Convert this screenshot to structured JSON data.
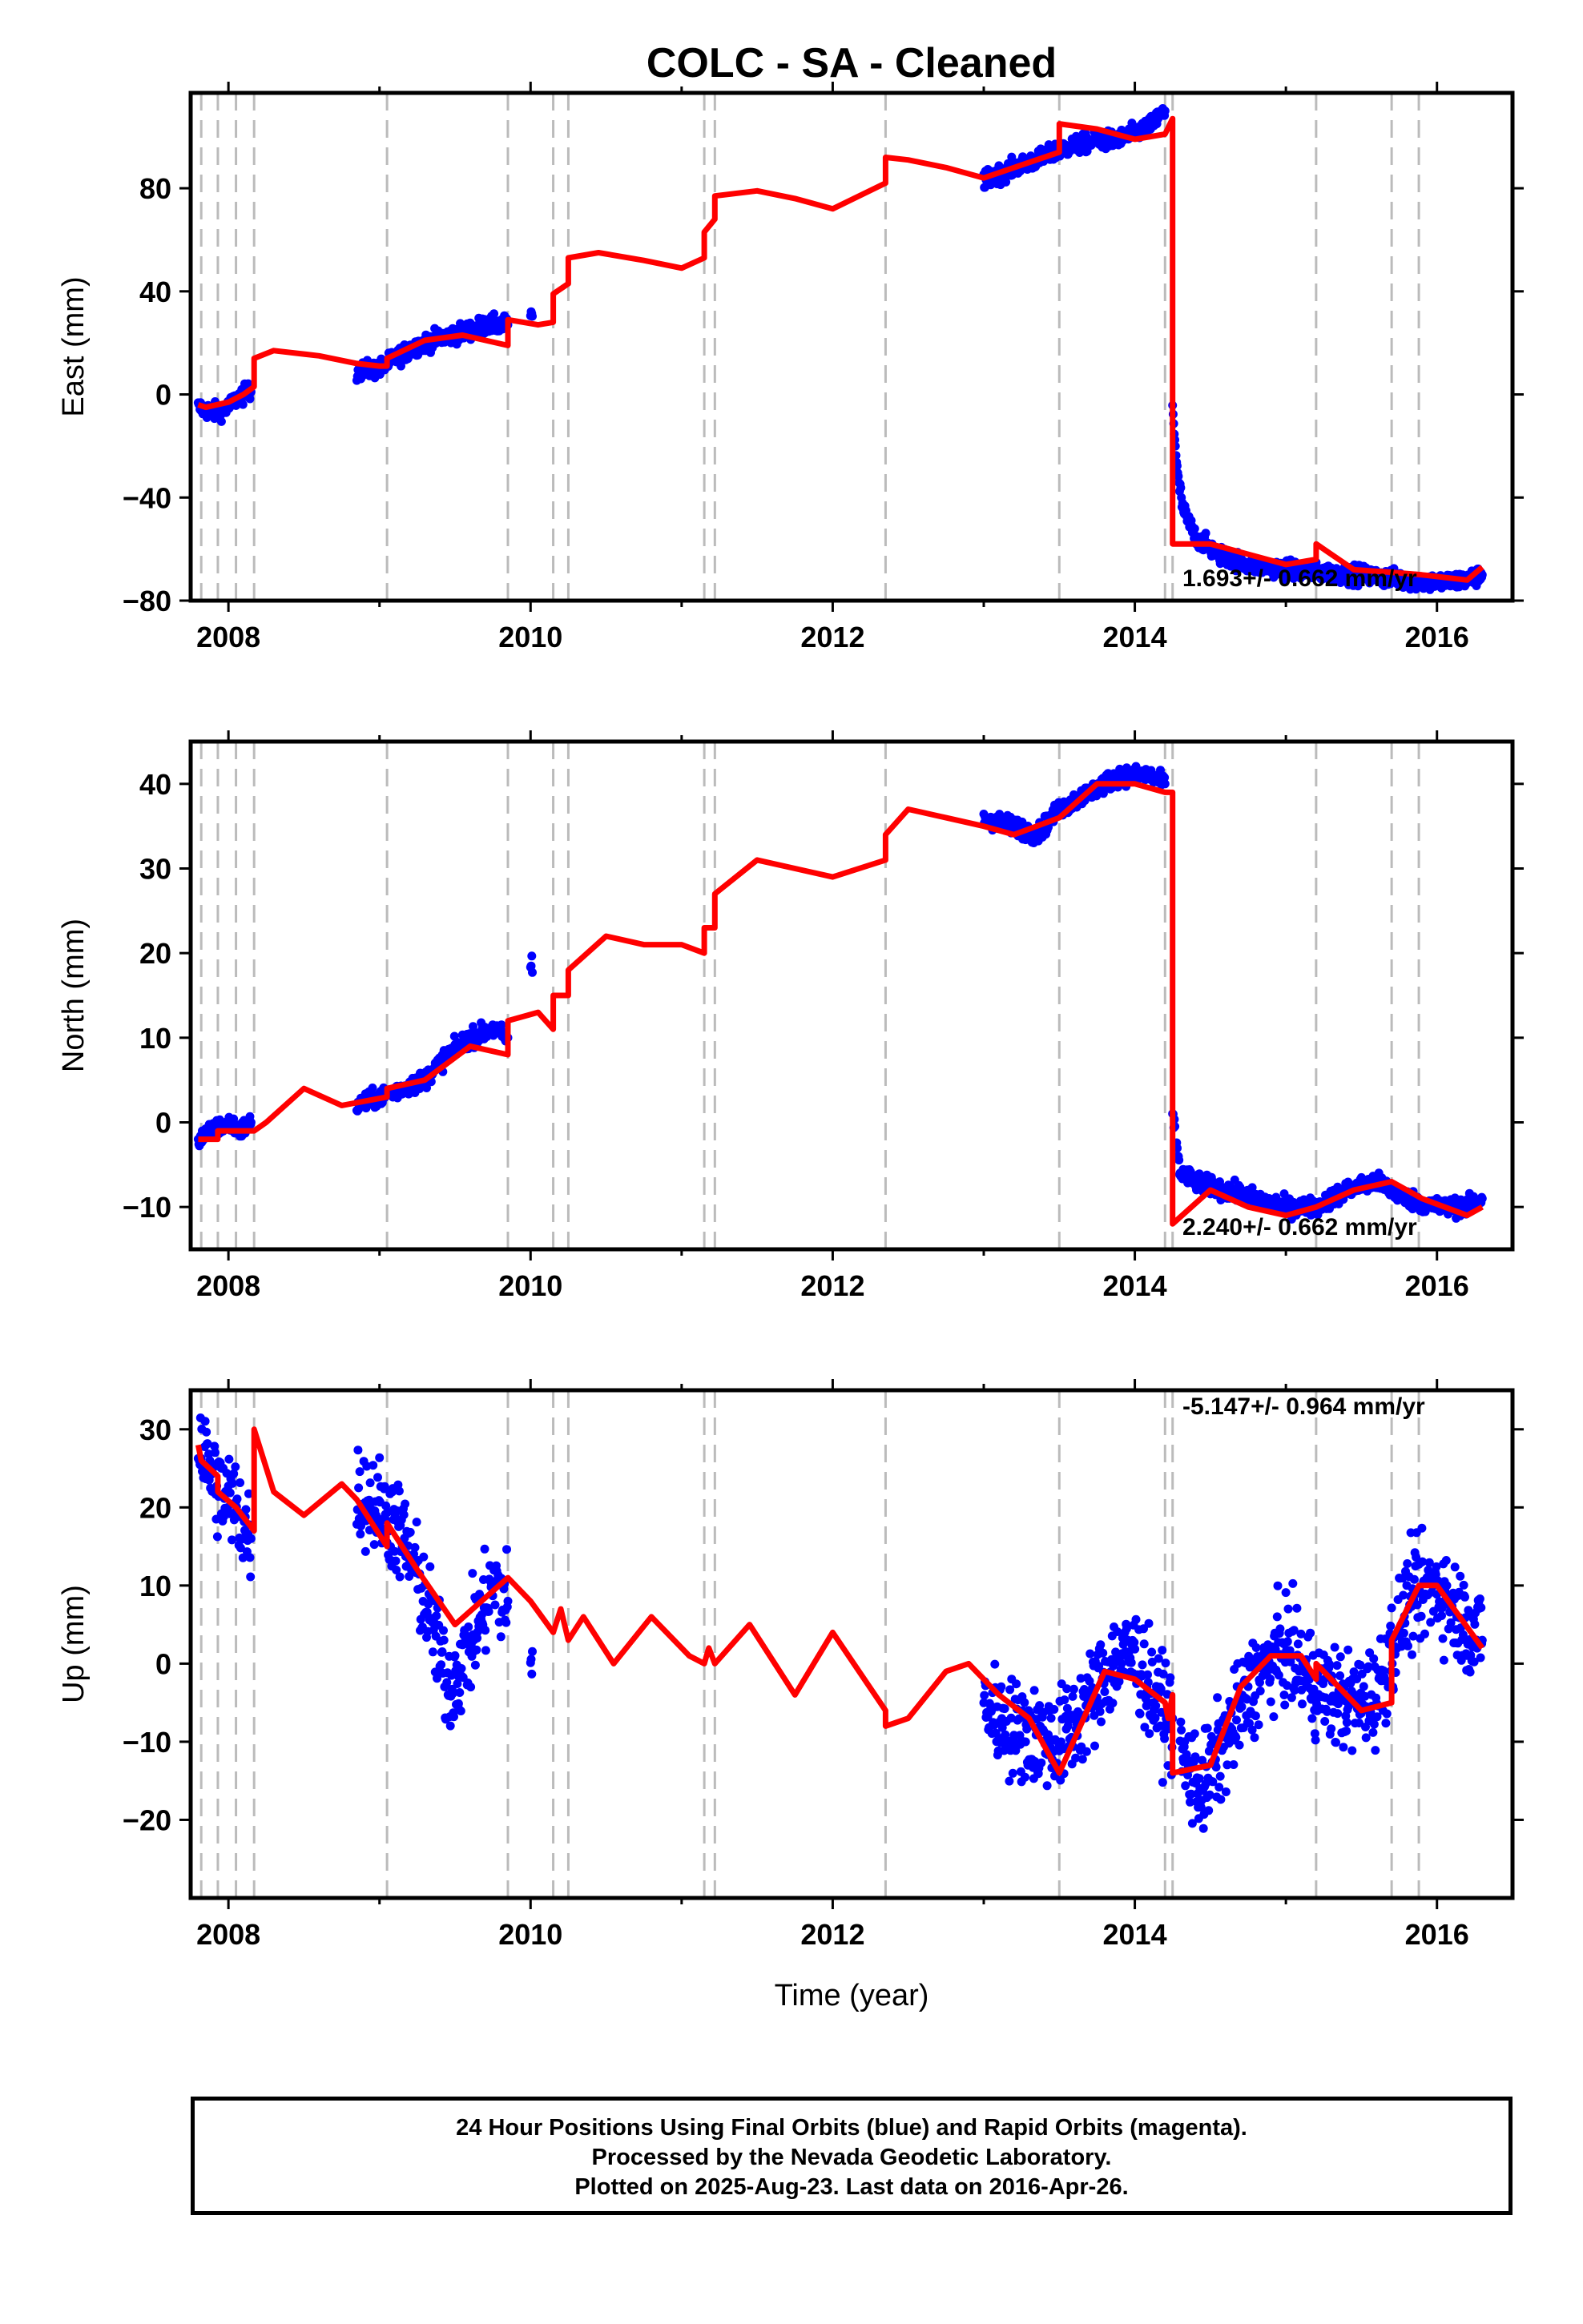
{
  "title": "COLC  - SA - Cleaned",
  "xlabel": "Time (year)",
  "footer": {
    "line1": "24 Hour Positions Using Final Orbits (blue) and Rapid Orbits (magenta).",
    "line2": "Processed by the Nevada Geodetic Laboratory.",
    "line3": "Plotted on 2025-Aug-23. Last data on 2016-Apr-26."
  },
  "colors": {
    "final_orbits": "#0000ff",
    "model": "#ff0000",
    "event_lines": "#bbbbbb",
    "frame": "#000000"
  },
  "chart_data": [
    {
      "type": "scatter",
      "component": "East",
      "ylabel": "East (mm)",
      "rate": "1.693+/- 0.662 mm/yr",
      "xlim": [
        2007.75,
        2016.5
      ],
      "ylim": [
        -80,
        117
      ],
      "xticks": [
        2008,
        2010,
        2012,
        2014,
        2016
      ],
      "yticks": [
        -80,
        -40,
        0,
        40,
        80
      ],
      "grid": false,
      "events": [
        2007.82,
        2007.93,
        2008.05,
        2008.17,
        2009.05,
        2009.85,
        2010.15,
        2010.25,
        2011.15,
        2011.22,
        2012.35,
        2013.5,
        2014.2,
        2014.25,
        2015.2,
        2015.7,
        2015.88
      ],
      "data_segments": [
        {
          "x": [
            2007.8,
            2007.9,
            2008.0,
            2008.05,
            2008.1,
            2008.15
          ],
          "y": [
            -5,
            -7,
            -5,
            -2,
            0,
            1
          ]
        },
        {
          "x": [
            2008.85,
            2009.0,
            2009.1,
            2009.25,
            2009.4,
            2009.55,
            2009.7,
            2009.85
          ],
          "y": [
            9,
            10,
            14,
            19,
            22,
            24,
            27,
            27
          ]
        },
        {
          "x": [
            2010.0
          ],
          "y": [
            31
          ]
        },
        {
          "x": [
            2013.0,
            2013.2,
            2013.4,
            2013.5,
            2013.7,
            2013.9,
            2014.1,
            2014.2
          ],
          "y": [
            83,
            88,
            92,
            95,
            98,
            99,
            104,
            110
          ]
        },
        {
          "x": [
            2014.25,
            2014.28,
            2014.32,
            2014.4,
            2014.55,
            2014.75,
            2015.0,
            2015.2,
            2015.5,
            2015.8,
            2016.0,
            2016.2,
            2016.3
          ],
          "y": [
            -4,
            -30,
            -45,
            -55,
            -62,
            -66,
            -68,
            -69,
            -70,
            -72,
            -73,
            -72,
            -70
          ]
        }
      ],
      "model": {
        "x": [
          2007.8,
          2007.85,
          2008.0,
          2008.1,
          2008.17,
          2008.17,
          2008.3,
          2008.6,
          2008.85,
          2009.0,
          2009.05,
          2009.05,
          2009.3,
          2009.55,
          2009.85,
          2009.85,
          2010.05,
          2010.15,
          2010.15,
          2010.25,
          2010.25,
          2010.45,
          2010.75,
          2011.0,
          2011.15,
          2011.15,
          2011.22,
          2011.22,
          2011.5,
          2011.75,
          2012.0,
          2012.35,
          2012.35,
          2012.5,
          2012.75,
          2013.0,
          2013.2,
          2013.5,
          2013.5,
          2013.75,
          2014.0,
          2014.2,
          2014.25,
          2014.25,
          2014.5,
          2014.75,
          2015.0,
          2015.2,
          2015.2,
          2015.45,
          2015.7,
          2015.9,
          2016.2,
          2016.3
        ],
        "y": [
          -4,
          -5,
          -3,
          0,
          3,
          14,
          17,
          15,
          12,
          11,
          11,
          14,
          21,
          23,
          19,
          29,
          27,
          28,
          39,
          43,
          53,
          55,
          52,
          49,
          53,
          63,
          68,
          77,
          79,
          76,
          72,
          82,
          92,
          91,
          88,
          84,
          88,
          94,
          105,
          103,
          99,
          101,
          107,
          -58,
          -58,
          -62,
          -66,
          -64,
          -58,
          -68,
          -69,
          -70,
          -72,
          -67
        ]
      }
    },
    {
      "type": "scatter",
      "component": "North",
      "ylabel": "North (mm)",
      "rate": "2.240+/- 0.662 mm/yr",
      "xlim": [
        2007.75,
        2016.5
      ],
      "ylim": [
        -15,
        45
      ],
      "xticks": [
        2008,
        2010,
        2012,
        2014,
        2016
      ],
      "yticks": [
        -10,
        0,
        10,
        20,
        30,
        40
      ],
      "grid": false,
      "events": [
        2007.82,
        2007.93,
        2008.05,
        2008.17,
        2009.05,
        2009.85,
        2010.15,
        2010.25,
        2011.15,
        2011.22,
        2012.35,
        2013.5,
        2014.2,
        2014.25,
        2015.2,
        2015.7,
        2015.88
      ],
      "data_segments": [
        {
          "x": [
            2007.8,
            2007.9,
            2008.0,
            2008.08,
            2008.15
          ],
          "y": [
            -2,
            -1,
            0,
            -1,
            0
          ]
        },
        {
          "x": [
            2008.85,
            2009.0,
            2009.15,
            2009.3,
            2009.45,
            2009.6,
            2009.75,
            2009.85
          ],
          "y": [
            2,
            3,
            4,
            5,
            8,
            10,
            11,
            10
          ]
        },
        {
          "x": [
            2010.0
          ],
          "y": [
            18
          ]
        },
        {
          "x": [
            2013.0,
            2013.2,
            2013.35,
            2013.5,
            2013.7,
            2013.9,
            2014.1,
            2014.2
          ],
          "y": [
            36,
            35,
            34,
            37,
            39,
            41,
            41,
            40
          ]
        },
        {
          "x": [
            2014.25,
            2014.3,
            2014.4,
            2014.6,
            2014.8,
            2015.0,
            2015.2,
            2015.4,
            2015.6,
            2015.8,
            2016.0,
            2016.2,
            2016.3
          ],
          "y": [
            1,
            -6,
            -7,
            -8,
            -9,
            -10,
            -10,
            -8,
            -7,
            -9,
            -10,
            -10,
            -9
          ]
        }
      ],
      "model": {
        "x": [
          2007.8,
          2007.82,
          2007.93,
          2007.93,
          2008.05,
          2008.05,
          2008.17,
          2008.25,
          2008.5,
          2008.75,
          2009.05,
          2009.05,
          2009.3,
          2009.6,
          2009.85,
          2009.85,
          2010.05,
          2010.15,
          2010.15,
          2010.25,
          2010.25,
          2010.5,
          2010.75,
          2011.0,
          2011.15,
          2011.15,
          2011.22,
          2011.22,
          2011.5,
          2011.75,
          2012.0,
          2012.35,
          2012.35,
          2012.5,
          2012.75,
          2013.0,
          2013.2,
          2013.5,
          2013.5,
          2013.75,
          2014.0,
          2014.2,
          2014.25,
          2014.25,
          2014.5,
          2014.75,
          2015.0,
          2015.2,
          2015.2,
          2015.45,
          2015.7,
          2015.9,
          2016.2,
          2016.3
        ],
        "y": [
          -2,
          -2,
          -2,
          -1,
          -1,
          -1,
          -1,
          0,
          4,
          2,
          3,
          4,
          5,
          9,
          8,
          12,
          13,
          11,
          15,
          15,
          18,
          22,
          21,
          21,
          20,
          23,
          23,
          27,
          31,
          30,
          29,
          31,
          34,
          37,
          36,
          35,
          34,
          36,
          36,
          40,
          40,
          39,
          39,
          -12,
          -8,
          -10,
          -11,
          -10,
          -10,
          -8,
          -7,
          -9,
          -11,
          -10
        ]
      }
    },
    {
      "type": "scatter",
      "component": "Up",
      "ylabel": "Up (mm)",
      "rate": "-5.147+/- 0.964 mm/yr",
      "xlim": [
        2007.75,
        2016.5
      ],
      "ylim": [
        -30,
        35
      ],
      "xticks": [
        2008,
        2010,
        2012,
        2014,
        2016
      ],
      "yticks": [
        -20,
        -10,
        0,
        10,
        20,
        30
      ],
      "grid": false,
      "events": [
        2007.82,
        2007.93,
        2008.05,
        2008.17,
        2009.05,
        2009.85,
        2010.15,
        2010.25,
        2011.15,
        2011.22,
        2012.35,
        2013.5,
        2014.2,
        2014.25,
        2015.2,
        2015.7,
        2015.88
      ],
      "data_segments": [
        {
          "x": [
            2007.8,
            2007.85,
            2007.95,
            2008.05,
            2008.1,
            2008.15
          ],
          "y": [
            29,
            26,
            22,
            20,
            18,
            16
          ]
        },
        {
          "x": [
            2008.85,
            2009.0,
            2009.1,
            2009.2,
            2009.35,
            2009.45,
            2009.55,
            2009.65,
            2009.75,
            2009.85
          ],
          "y": [
            22,
            20,
            18,
            14,
            5,
            -3,
            0,
            5,
            10,
            8
          ]
        },
        {
          "x": [
            2010.0
          ],
          "y": [
            0
          ]
        },
        {
          "x": [
            2013.0,
            2013.15,
            2013.3,
            2013.5,
            2013.7,
            2013.85,
            2014.0,
            2014.15,
            2014.25
          ],
          "y": [
            -5,
            -8,
            -9,
            -10,
            -5,
            0,
            1,
            -5,
            -7
          ]
        },
        {
          "x": [
            2014.3,
            2014.45,
            2014.6,
            2014.8,
            2015.0,
            2015.2,
            2015.4,
            2015.6,
            2015.8,
            2016.0,
            2016.2,
            2016.3
          ],
          "y": [
            -12,
            -16,
            -10,
            -2,
            2,
            -3,
            -5,
            -4,
            8,
            10,
            5,
            3
          ]
        }
      ],
      "model": {
        "x": [
          2007.8,
          2007.82,
          2007.93,
          2007.93,
          2008.05,
          2008.05,
          2008.17,
          2008.17,
          2008.3,
          2008.5,
          2008.75,
          2008.85,
          2009.05,
          2009.05,
          2009.25,
          2009.5,
          2009.85,
          2010.0,
          2010.15,
          2010.2,
          2010.25,
          2010.35,
          2010.55,
          2010.8,
          2011.05,
          2011.15,
          2011.18,
          2011.22,
          2011.45,
          2011.75,
          2012.0,
          2012.35,
          2012.35,
          2012.5,
          2012.75,
          2012.9,
          2013.1,
          2013.3,
          2013.5,
          2013.5,
          2013.8,
          2014.0,
          2014.2,
          2014.22,
          2014.25,
          2014.25,
          2014.5,
          2014.7,
          2014.9,
          2015.1,
          2015.2,
          2015.2,
          2015.5,
          2015.7,
          2015.7,
          2015.88,
          2016.0,
          2016.3
        ],
        "y": [
          28,
          26,
          24,
          22,
          20,
          20,
          17,
          30,
          22,
          19,
          23,
          21,
          15,
          18,
          12,
          5,
          11,
          8,
          4,
          7,
          3,
          6,
          0,
          6,
          1,
          0,
          2,
          0,
          5,
          -4,
          4,
          -6,
          -8,
          -7,
          -1,
          0,
          -4,
          -7,
          -14,
          -14,
          -1,
          -2,
          -5,
          -7,
          -4,
          -14,
          -13,
          -3,
          1,
          1,
          -2,
          0,
          -6,
          -5,
          3,
          10,
          10,
          2
        ]
      }
    }
  ]
}
